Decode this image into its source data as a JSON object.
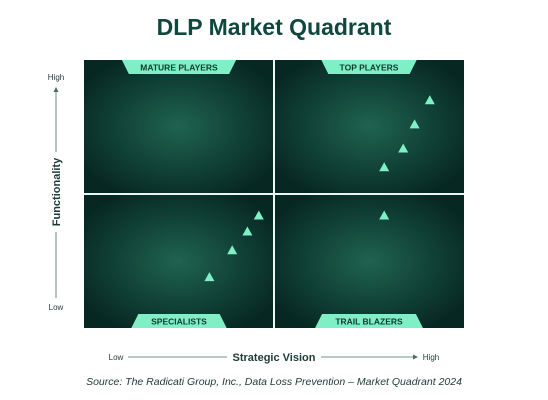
{
  "chart_data": {
    "type": "scatter",
    "title": "DLP Market Quadrant",
    "xlabel": "Strategic Vision",
    "ylabel": "Functionality",
    "x_low_label": "Low",
    "x_high_label": "High",
    "y_low_label": "Low",
    "y_high_label": "High",
    "xlim": [
      0,
      1
    ],
    "ylim": [
      0,
      1
    ],
    "quadrants": {
      "top_left": "MATURE PLAYERS",
      "top_right": "TOP PLAYERS",
      "bottom_left": "SPECIALISTS",
      "bottom_right": "TRAIL BLAZERS"
    },
    "marker": "triangle",
    "points": [
      {
        "x": 0.91,
        "y": 0.85
      },
      {
        "x": 0.87,
        "y": 0.76
      },
      {
        "x": 0.84,
        "y": 0.67
      },
      {
        "x": 0.79,
        "y": 0.6
      },
      {
        "x": 0.79,
        "y": 0.42
      },
      {
        "x": 0.46,
        "y": 0.42
      },
      {
        "x": 0.43,
        "y": 0.36
      },
      {
        "x": 0.39,
        "y": 0.29
      },
      {
        "x": 0.33,
        "y": 0.19
      }
    ],
    "source": "Source: The Radicati Group, Inc., Data Loss Prevention – Market Quadrant 2024"
  },
  "colors": {
    "title": "#10473f",
    "quadrant_center": "#1f6350",
    "quadrant_edge": "#062722",
    "label_bg": "#7ff0c6",
    "label_text": "#0e3a30",
    "marker": "#7ff0c6",
    "axis_text": "#1d3a36"
  }
}
